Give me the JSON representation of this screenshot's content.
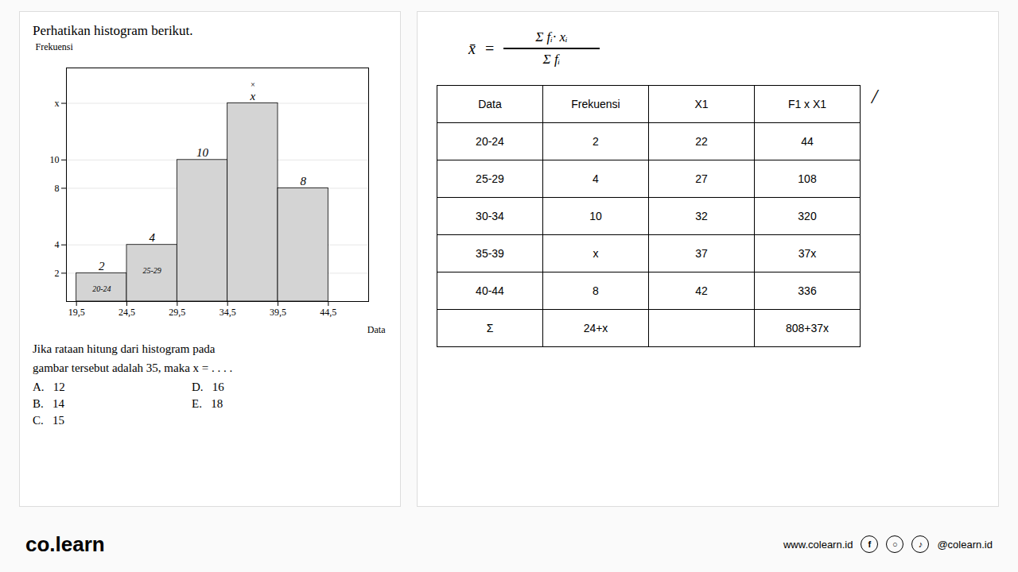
{
  "chart_data": [
    {
      "type": "histogram",
      "title": "Perhatikan histogram berikut.",
      "xlabel": "Data",
      "ylabel": "Frekuensi",
      "bins": [
        19.5,
        24.5,
        29.5,
        34.5,
        39.5,
        44.5
      ],
      "values": [
        2,
        4,
        10,
        14,
        8
      ],
      "value_labels": [
        "2",
        "4",
        "10",
        "x",
        "8"
      ],
      "data_labels": true,
      "color": "#d4d4d4",
      "xlim": [
        18.5,
        48.5
      ],
      "xticks": [
        {
          "value": 19.5,
          "label": "19,5"
        },
        {
          "value": 24.5,
          "label": "24,5"
        },
        {
          "value": 29.5,
          "label": "29,5"
        },
        {
          "value": 34.5,
          "label": "34,5"
        },
        {
          "value": 39.5,
          "label": "39,5"
        },
        {
          "value": 44.5,
          "label": "44,5"
        }
      ],
      "ylim": [
        0,
        16.5
      ],
      "yticks": [
        2,
        4,
        8,
        10,
        {
          "value": 14,
          "label": "x"
        }
      ],
      "grid": true,
      "annotations": [
        {
          "text": "20-24",
          "x": 22,
          "y": 0.9
        },
        {
          "text": "25-29",
          "x": 27,
          "y": 2.2
        },
        {
          "text": "×",
          "x": 37,
          "y": 15.3
        },
        {
          "text": "Jika rataan hitung dari histogram pada\ngambar tersebut adalah 35, maka x = . . . ."
        },
        {
          "text": "A.   12"
        },
        {
          "text": "B.   14"
        },
        {
          "text": "C.   15"
        },
        {
          "text": "D.   16"
        },
        {
          "text": "E.   18"
        }
      ]
    },
    {
      "type": "table",
      "columns": [
        "Data",
        "Frekuensi",
        "X1",
        "F1 x X1"
      ],
      "rows": [
        [
          "20-24",
          "2",
          "22",
          "44"
        ],
        [
          "25-29",
          "4",
          "27",
          "108"
        ],
        [
          "30-34",
          "10",
          "32",
          "320"
        ],
        [
          "35-39",
          "x",
          "37",
          "37x"
        ],
        [
          "40-44",
          "8",
          "42",
          "336"
        ],
        [
          "Σ",
          "24+x",
          null,
          "808+37x"
        ]
      ],
      "annotations": [
        "x̄",
        "=",
        "Σ",
        "fᵢ· xᵢ",
        "Σ",
        "fᵢ",
        "/"
      ]
    },
    {
      "type": "text",
      "annotations": [
        "co",
        ".",
        "learn",
        "www.colearn.id",
        "f",
        "○",
        "♪",
        "@colearn.id"
      ]
    }
  ]
}
